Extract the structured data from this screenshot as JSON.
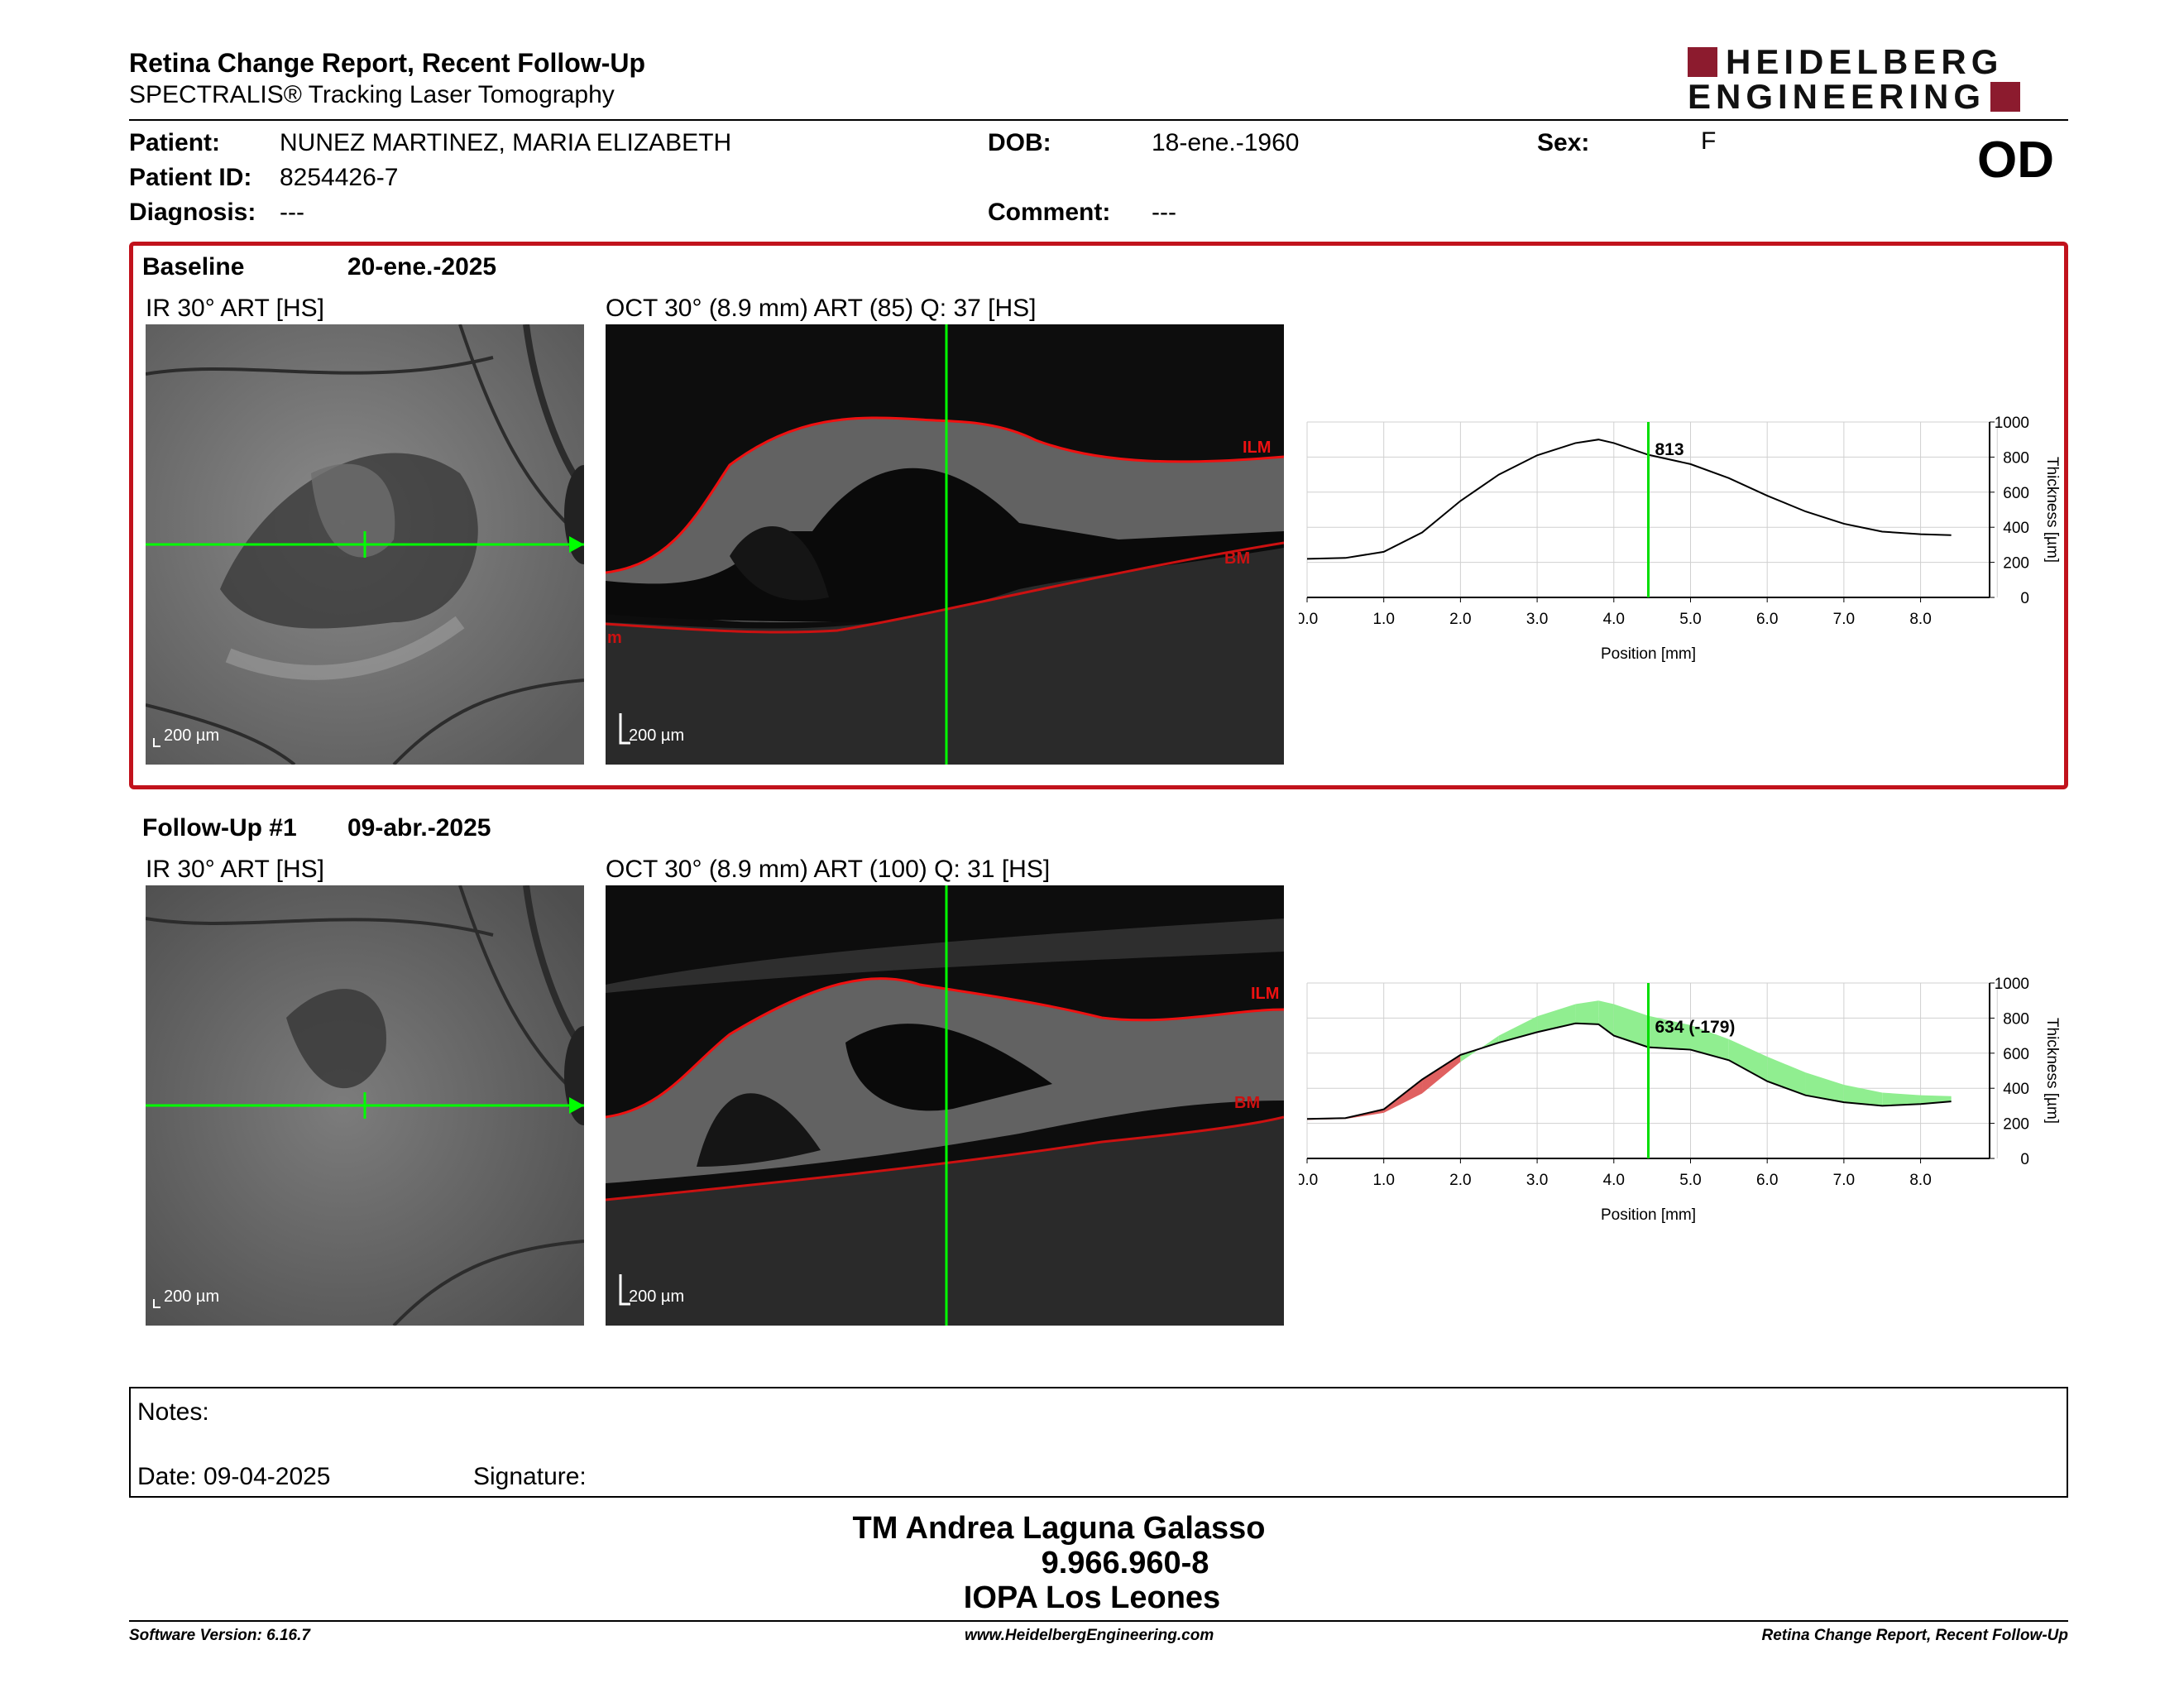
{
  "header": {
    "title": "Retina Change Report, Recent Follow-Up",
    "subtitle": "SPECTRALIS® Tracking Laser Tomography",
    "logo_line1": "HEIDELBERG",
    "logo_line2": "ENGINEERING",
    "eye": "OD"
  },
  "patient": {
    "patient_label": "Patient:",
    "patient_value": "NUNEZ MARTINEZ, MARIA ELIZABETH",
    "id_label": "Patient ID:",
    "id_value": "8254426-7",
    "diagnosis_label": "Diagnosis:",
    "diagnosis_value": "---",
    "dob_label": "DOB:",
    "dob_value": "18-ene.-1960",
    "comment_label": "Comment:",
    "comment_value": "---",
    "sex_label": "Sex:",
    "sex_value": "F"
  },
  "baseline": {
    "label": "Baseline",
    "date": "20-ene.-2025",
    "ir_label": "IR 30° ART [HS]",
    "oct_label": "OCT 30° (8.9 mm) ART (85) Q: 37 [HS]",
    "scale": "200 µm",
    "ilm": "ILM",
    "bm": "BM",
    "bm_partial": "m"
  },
  "followup": {
    "label": "Follow-Up #1",
    "date": "09-abr.-2025",
    "ir_label": "IR 30° ART [HS]",
    "oct_label": "OCT 30° (8.9 mm) ART (100) Q: 31 [HS]",
    "scale": "200 µm",
    "ilm": "ILM",
    "bm": "BM"
  },
  "chart_data": [
    {
      "type": "line",
      "xlabel": "Position [mm]",
      "ylabel": "Thickness [µm]",
      "xlim": [
        0,
        8.9
      ],
      "ylim": [
        0,
        1000
      ],
      "xticks": [
        "0.0",
        "1.0",
        "2.0",
        "3.0",
        "4.0",
        "5.0",
        "6.0",
        "7.0",
        "8.0"
      ],
      "yticks": [
        "0",
        "200",
        "400",
        "600",
        "800",
        "1000"
      ],
      "grid": true,
      "marker_x": 4.45,
      "marker_label": "813",
      "series": [
        {
          "x": [
            0,
            0.5,
            1.0,
            1.5,
            2.0,
            2.5,
            3.0,
            3.5,
            3.8,
            4.0,
            4.45,
            5.0,
            5.5,
            6.0,
            6.5,
            7.0,
            7.5,
            8.0,
            8.4
          ],
          "y": [
            220,
            225,
            260,
            370,
            550,
            700,
            810,
            880,
            900,
            880,
            813,
            760,
            680,
            580,
            490,
            420,
            375,
            360,
            355
          ]
        }
      ]
    },
    {
      "type": "area",
      "xlabel": "Position [mm]",
      "ylabel": "Thickness [µm]",
      "xlim": [
        0,
        8.9
      ],
      "ylim": [
        0,
        1000
      ],
      "xticks": [
        "0.0",
        "1.0",
        "2.0",
        "3.0",
        "4.0",
        "5.0",
        "6.0",
        "7.0",
        "8.0"
      ],
      "yticks": [
        "0",
        "200",
        "400",
        "600",
        "800",
        "1000"
      ],
      "grid": true,
      "marker_x": 4.45,
      "marker_label": "634 (-179)",
      "colors": {
        "increase": "#90ee90",
        "decrease": "#e06060"
      },
      "series": [
        {
          "x": [
            0,
            0.5,
            1.0,
            1.5,
            2.0,
            2.5,
            3.0,
            3.5,
            3.8,
            4.0,
            4.45,
            5.0,
            5.5,
            6.0,
            6.5,
            7.0,
            7.5,
            8.0,
            8.4
          ],
          "y": [
            220,
            225,
            260,
            370,
            550,
            700,
            810,
            880,
            900,
            880,
            813,
            760,
            680,
            580,
            490,
            420,
            375,
            360,
            355
          ]
        },
        {
          "x": [
            0,
            0.5,
            1.0,
            1.5,
            2.0,
            2.5,
            3.0,
            3.5,
            3.8,
            4.0,
            4.45,
            5.0,
            5.5,
            6.0,
            6.5,
            7.0,
            7.5,
            8.0,
            8.4
          ],
          "y": [
            225,
            230,
            280,
            450,
            590,
            660,
            720,
            770,
            765,
            700,
            634,
            620,
            560,
            440,
            360,
            320,
            300,
            310,
            325
          ]
        }
      ]
    }
  ],
  "notes": {
    "notes_label": "Notes:",
    "date_label": "Date: 09-04-2025",
    "signature_label": "Signature:"
  },
  "signer": {
    "name": "TM Andrea Laguna Galasso",
    "id": "9.966.960-8",
    "org": "IOPA Los Leones"
  },
  "footer": {
    "version": "Software Version: 6.16.7",
    "website": "www.HeidelbergEngineering.com",
    "report": "Retina Change Report, Recent Follow-Up"
  }
}
